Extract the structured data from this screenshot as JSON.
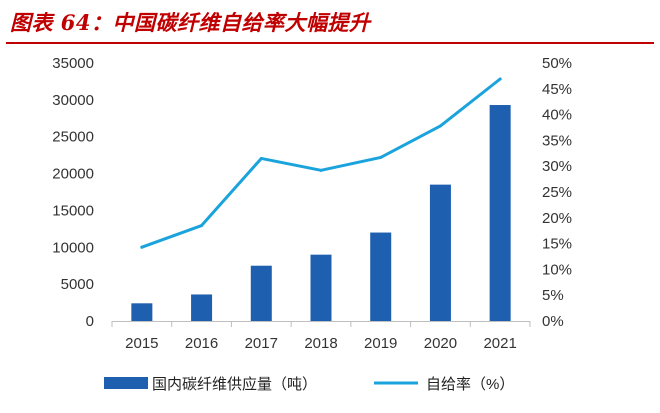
{
  "title": "图表 64：中国碳纤维自给率大幅提升",
  "colors": {
    "bar": "#1f5fb0",
    "line": "#1aa3dc",
    "title": "#c00000",
    "axis": "#bfbfbf"
  },
  "chart_data": {
    "type": "bar",
    "categories": [
      "2015",
      "2016",
      "2017",
      "2018",
      "2019",
      "2020",
      "2021"
    ],
    "series": [
      {
        "name": "国内碳纤维供应量（吨）",
        "type": "bar",
        "axis": "left",
        "values": [
          2400,
          3600,
          7500,
          9000,
          12000,
          18500,
          29300
        ]
      },
      {
        "name": "自给率（%）",
        "type": "line",
        "axis": "right",
        "values": [
          14.3,
          18.5,
          31.5,
          29.2,
          31.7,
          37.8,
          46.9
        ]
      }
    ],
    "y_left": {
      "ticks": [
        "0",
        "5000",
        "10000",
        "15000",
        "20000",
        "25000",
        "30000",
        "35000"
      ],
      "ylim": [
        0,
        35000
      ]
    },
    "y_right": {
      "ticks": [
        "0%",
        "5%",
        "10%",
        "15%",
        "20%",
        "25%",
        "30%",
        "35%",
        "40%",
        "45%",
        "50%"
      ],
      "ylim": [
        0,
        50
      ]
    },
    "grid": false,
    "legend": "bottom"
  }
}
